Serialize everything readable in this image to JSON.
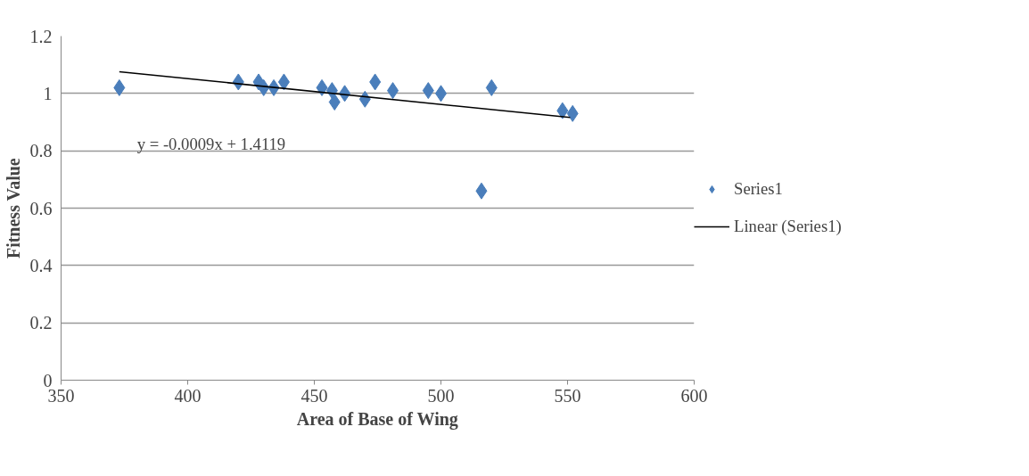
{
  "chart_data": {
    "type": "scatter",
    "xlabel": "Area of Base of Wing",
    "ylabel": "Fitness Value",
    "xlim": [
      350,
      600
    ],
    "xticks": [
      350,
      400,
      450,
      500,
      550,
      600
    ],
    "ylim": [
      0,
      1.2
    ],
    "yticks": [
      0,
      0.2,
      0.4,
      0.6,
      0.8,
      1,
      1.2
    ],
    "grid": "y",
    "legend": "right",
    "annotations": [
      "y = -0.0009x + 1.4119"
    ],
    "series": [
      {
        "name": "Series1",
        "color": "#4a7ebb",
        "marker": "diamond",
        "x": [
          373,
          420,
          428,
          430,
          434,
          438,
          453,
          457,
          458,
          462,
          470,
          474,
          481,
          495,
          500,
          516,
          520,
          548,
          552
        ],
        "values": [
          1.02,
          1.04,
          1.04,
          1.02,
          1.02,
          1.04,
          1.02,
          1.01,
          0.97,
          1.0,
          0.98,
          1.04,
          1.01,
          1.01,
          1.0,
          0.66,
          1.02,
          0.94,
          0.93
        ]
      },
      {
        "name": "Linear (Series1)",
        "type": "line",
        "marker": "none",
        "color": "#000000",
        "x": [
          373,
          551
        ],
        "values": [
          1.076,
          0.916
        ]
      }
    ]
  }
}
